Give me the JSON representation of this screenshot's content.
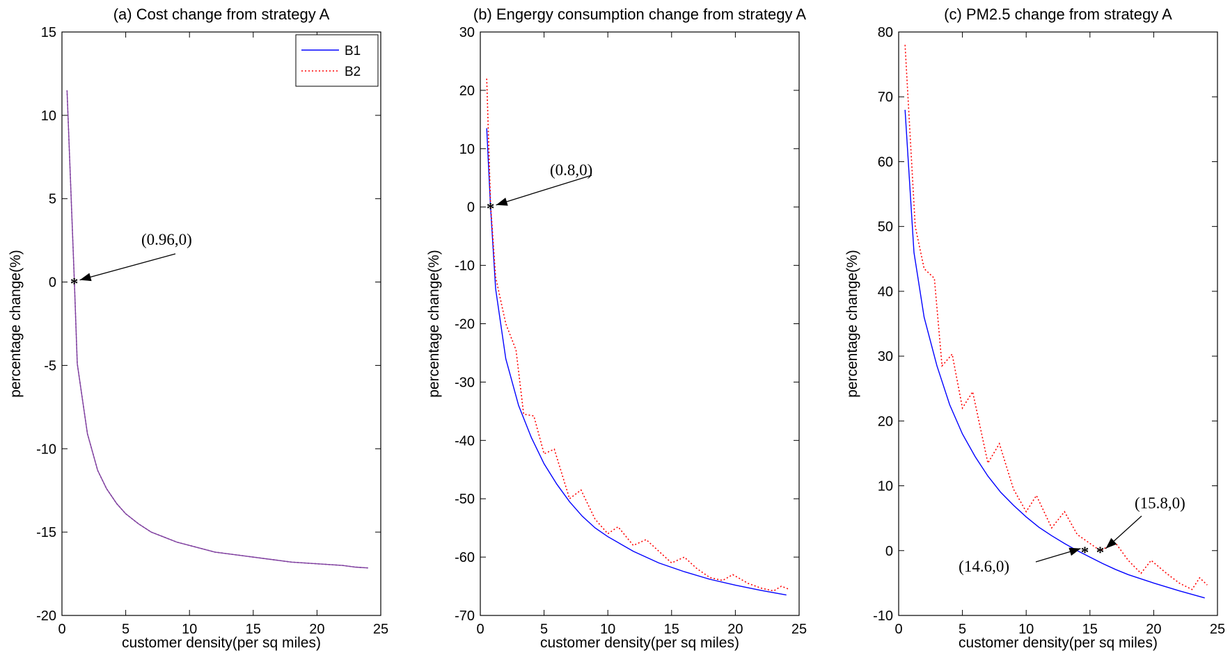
{
  "colors": {
    "B1": "#0000ff",
    "B2": "#ff0000",
    "B_overlap": "#7f3f9f",
    "axes": "#000000"
  },
  "chart_data": [
    {
      "type": "line",
      "title": "(a) Cost change from strategy A",
      "xlabel": "customer density(per sq miles)",
      "ylabel": "percentage change(%)",
      "xlim": [
        0,
        25
      ],
      "ylim": [
        -20,
        15
      ],
      "xticks": [
        0,
        5,
        10,
        15,
        20,
        25
      ],
      "yticks": [
        -20,
        -15,
        -10,
        -5,
        0,
        5,
        10,
        15
      ],
      "legend": {
        "placement": "top-right",
        "entries": [
          "B1",
          "B2"
        ]
      },
      "series": [
        {
          "name": "B1",
          "style": "solid",
          "x": [
            0.4,
            0.96,
            1.2,
            2.0,
            2.8,
            3.5,
            4.3,
            5.0,
            6.0,
            7.0,
            8.0,
            9.0,
            10,
            12,
            14,
            16,
            18,
            20,
            22,
            23,
            24
          ],
          "y": [
            11.5,
            0.3,
            -4.9,
            -9.1,
            -11.3,
            -12.4,
            -13.3,
            -13.9,
            -14.5,
            -15.0,
            -15.3,
            -15.6,
            -15.8,
            -16.2,
            -16.4,
            -16.6,
            -16.8,
            -16.9,
            -17.0,
            -17.1,
            -17.15
          ]
        },
        {
          "name": "B2",
          "style": "dotted",
          "x": [
            0.4,
            0.96,
            1.2,
            2.0,
            2.8,
            3.5,
            4.3,
            5.0,
            6.0,
            7.0,
            8.0,
            9.0,
            10,
            12,
            14,
            16,
            18,
            20,
            22,
            23,
            24
          ],
          "y": [
            11.5,
            0.3,
            -4.9,
            -9.1,
            -11.3,
            -12.4,
            -13.3,
            -13.9,
            -14.5,
            -15.0,
            -15.3,
            -15.6,
            -15.8,
            -16.2,
            -16.4,
            -16.6,
            -16.8,
            -16.9,
            -17.0,
            -17.1,
            -17.15
          ]
        }
      ],
      "annotations": [
        {
          "label": "(0.96,0)",
          "x": 0.96,
          "y": 0,
          "marker": "*"
        }
      ]
    },
    {
      "type": "line",
      "title": "(b) Engergy consumption change from strategy A",
      "xlabel": "customer density(per sq miles)",
      "ylabel": "percentage change(%)",
      "xlim": [
        0,
        25
      ],
      "ylim": [
        -70,
        30
      ],
      "xticks": [
        0,
        5,
        10,
        15,
        20,
        25
      ],
      "yticks": [
        -70,
        -60,
        -50,
        -40,
        -30,
        -20,
        -10,
        0,
        10,
        20,
        30
      ],
      "series": [
        {
          "name": "B1",
          "style": "solid",
          "x": [
            0.5,
            0.8,
            1.2,
            2.0,
            3.0,
            4.0,
            5.0,
            6.0,
            7.0,
            8.0,
            9.0,
            10,
            12,
            14,
            16,
            18,
            20,
            22,
            24
          ],
          "y": [
            13.5,
            0,
            -14,
            -26,
            -34,
            -39.5,
            -44,
            -47.5,
            -50.5,
            -53,
            -55,
            -56.5,
            -59,
            -61,
            -62.5,
            -63.8,
            -64.8,
            -65.7,
            -66.5
          ]
        },
        {
          "name": "B2",
          "style": "dotted",
          "x": [
            0.5,
            0.8,
            1.2,
            2.0,
            2.8,
            3.4,
            4.2,
            5.0,
            5.8,
            7.0,
            7.9,
            9.0,
            10,
            10.8,
            12,
            13,
            14,
            15,
            16,
            17,
            18,
            19,
            19.8,
            21,
            22,
            23,
            23.6,
            24.2
          ],
          "y": [
            22,
            0.5,
            -12,
            -20,
            -24.5,
            -35.5,
            -35.8,
            -42.3,
            -41.5,
            -50,
            -48.5,
            -53.5,
            -56,
            -54.8,
            -58,
            -57,
            -59,
            -61,
            -60,
            -62,
            -63.5,
            -64,
            -63,
            -64.5,
            -65.3,
            -65.8,
            -65,
            -65.5
          ]
        }
      ],
      "annotations": [
        {
          "label": "(0.8,0)",
          "x": 0.8,
          "y": 0,
          "marker": "*"
        }
      ]
    },
    {
      "type": "line",
      "title": "(c) PM2.5 change from strategy A",
      "xlabel": "customer density(per sq miles)",
      "ylabel": "percentage change(%)",
      "xlim": [
        0,
        25
      ],
      "ylim": [
        -10,
        80
      ],
      "xticks": [
        0,
        5,
        10,
        15,
        20,
        25
      ],
      "yticks": [
        -10,
        0,
        10,
        20,
        30,
        40,
        50,
        60,
        70,
        80
      ],
      "series": [
        {
          "name": "B1",
          "style": "solid",
          "x": [
            0.5,
            1.2,
            2.0,
            3.0,
            4.0,
            5.0,
            6.0,
            7.0,
            8.0,
            9.0,
            10,
            11,
            12,
            13,
            14,
            15,
            16,
            17,
            18,
            20,
            22,
            24
          ],
          "y": [
            68,
            46,
            36,
            28.5,
            22.5,
            18,
            14.5,
            11.5,
            9,
            7,
            5.2,
            3.6,
            2.3,
            1.1,
            0,
            -1,
            -2,
            -2.9,
            -3.7,
            -5,
            -6.2,
            -7.3
          ]
        },
        {
          "name": "B2",
          "style": "dotted",
          "x": [
            0.5,
            1.3,
            2.0,
            2.8,
            3.4,
            4.2,
            5.0,
            5.8,
            7.0,
            7.9,
            9.0,
            10,
            10.8,
            12,
            13,
            14,
            15.8,
            17,
            18,
            19,
            19.8,
            21,
            22,
            23,
            23.6,
            24.2
          ],
          "y": [
            78,
            50,
            43.5,
            42,
            28.5,
            30.3,
            22,
            24.5,
            13.5,
            16.5,
            9.5,
            6,
            8.5,
            3.5,
            6,
            2.5,
            0,
            1.2,
            -1.5,
            -3.5,
            -1.5,
            -3.5,
            -5,
            -6,
            -4.2,
            -5.3
          ]
        }
      ],
      "annotations": [
        {
          "label": "(14.6,0)",
          "x": 14.6,
          "y": 0,
          "marker": "*"
        },
        {
          "label": "(15.8,0)",
          "x": 15.8,
          "y": 0,
          "marker": "*"
        }
      ]
    }
  ]
}
